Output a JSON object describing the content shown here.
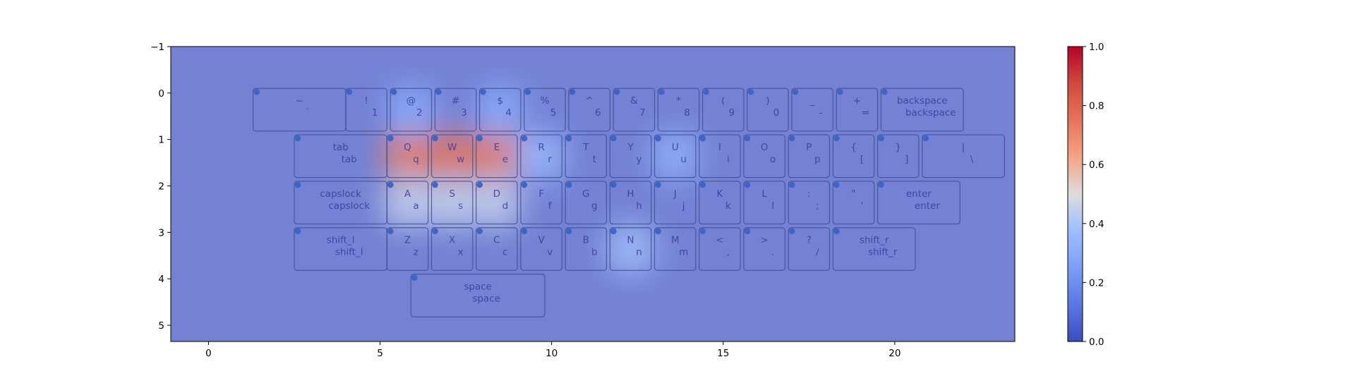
{
  "chart_data": {
    "type": "heatmap",
    "title": "",
    "xlabel": "",
    "ylabel": "",
    "xlim": [
      -1.1,
      23.5
    ],
    "ylim": [
      5.35,
      -1.0
    ],
    "y_inverted": true,
    "grid": false,
    "x_ticks": [
      0,
      5,
      10,
      15,
      20
    ],
    "y_ticks": [
      -1,
      0,
      1,
      2,
      3,
      4,
      5
    ],
    "x_tick_labels": [
      "0",
      "5",
      "10",
      "15",
      "20"
    ],
    "y_tick_labels": [
      "−1",
      "0",
      "1",
      "2",
      "3",
      "4",
      "5"
    ],
    "colormap": "coolwarm",
    "colorbar": {
      "min": 0.0,
      "max": 1.0,
      "ticks": [
        0.0,
        0.2,
        0.4,
        0.6,
        0.8,
        1.0
      ],
      "tick_labels": [
        "0.0",
        "0.2",
        "0.4",
        "0.6",
        "0.8",
        "1.0"
      ]
    },
    "background_value": 0.1,
    "intensity_peaks": [
      {
        "key": "q",
        "value": 0.72
      },
      {
        "key": "w",
        "value": 0.75
      },
      {
        "key": "e",
        "value": 0.72
      },
      {
        "key": "a",
        "value": 0.45
      },
      {
        "key": "s",
        "value": 0.45
      },
      {
        "key": "d",
        "value": 0.45
      },
      {
        "key": "r",
        "value": 0.35
      },
      {
        "key": "u",
        "value": 0.32
      },
      {
        "key": "n",
        "value": 0.38
      },
      {
        "key": "2",
        "value": 0.3
      },
      {
        "key": "4",
        "value": 0.3
      }
    ],
    "keys": [
      {
        "name": "grave",
        "shift": "~",
        "base": "`",
        "x": 1.3,
        "y": -0.1,
        "w": 2.7,
        "h": 0.92
      },
      {
        "name": "1",
        "shift": "!",
        "base": "1",
        "x": 4.0,
        "y": -0.1,
        "w": 1.2,
        "h": 0.92
      },
      {
        "name": "2",
        "shift": "@",
        "base": "2",
        "x": 5.3,
        "y": -0.1,
        "w": 1.2,
        "h": 0.92
      },
      {
        "name": "3",
        "shift": "#",
        "base": "3",
        "x": 6.6,
        "y": -0.1,
        "w": 1.2,
        "h": 0.92
      },
      {
        "name": "4",
        "shift": "$",
        "base": "4",
        "x": 7.9,
        "y": -0.1,
        "w": 1.2,
        "h": 0.92
      },
      {
        "name": "5",
        "shift": "%",
        "base": "5",
        "x": 9.2,
        "y": -0.1,
        "w": 1.2,
        "h": 0.92
      },
      {
        "name": "6",
        "shift": "^",
        "base": "6",
        "x": 10.5,
        "y": -0.1,
        "w": 1.2,
        "h": 0.92
      },
      {
        "name": "7",
        "shift": "&",
        "base": "7",
        "x": 11.8,
        "y": -0.1,
        "w": 1.2,
        "h": 0.92
      },
      {
        "name": "8",
        "shift": "*",
        "base": "8",
        "x": 13.1,
        "y": -0.1,
        "w": 1.2,
        "h": 0.92
      },
      {
        "name": "9",
        "shift": "(",
        "base": "9",
        "x": 14.4,
        "y": -0.1,
        "w": 1.2,
        "h": 0.92
      },
      {
        "name": "0",
        "shift": ")",
        "base": "0",
        "x": 15.7,
        "y": -0.1,
        "w": 1.2,
        "h": 0.92
      },
      {
        "name": "minus",
        "shift": "_",
        "base": "-",
        "x": 17.0,
        "y": -0.1,
        "w": 1.2,
        "h": 0.92
      },
      {
        "name": "equal",
        "shift": "+",
        "base": "=",
        "x": 18.3,
        "y": -0.1,
        "w": 1.2,
        "h": 0.92
      },
      {
        "name": "backspace",
        "shift": "backspace",
        "base": "backspace",
        "x": 19.6,
        "y": -0.1,
        "w": 2.4,
        "h": 0.92
      },
      {
        "name": "tab",
        "shift": "tab",
        "base": "tab",
        "x": 2.5,
        "y": 0.9,
        "w": 2.7,
        "h": 0.92
      },
      {
        "name": "q",
        "shift": "Q",
        "base": "q",
        "x": 5.2,
        "y": 0.9,
        "w": 1.2,
        "h": 0.92
      },
      {
        "name": "w",
        "shift": "W",
        "base": "w",
        "x": 6.5,
        "y": 0.9,
        "w": 1.2,
        "h": 0.92
      },
      {
        "name": "e",
        "shift": "E",
        "base": "e",
        "x": 7.8,
        "y": 0.9,
        "w": 1.2,
        "h": 0.92
      },
      {
        "name": "r",
        "shift": "R",
        "base": "r",
        "x": 9.1,
        "y": 0.9,
        "w": 1.2,
        "h": 0.92
      },
      {
        "name": "t",
        "shift": "T",
        "base": "t",
        "x": 10.4,
        "y": 0.9,
        "w": 1.2,
        "h": 0.92
      },
      {
        "name": "y",
        "shift": "Y",
        "base": "y",
        "x": 11.7,
        "y": 0.9,
        "w": 1.2,
        "h": 0.92
      },
      {
        "name": "u",
        "shift": "U",
        "base": "u",
        "x": 13.0,
        "y": 0.9,
        "w": 1.2,
        "h": 0.92
      },
      {
        "name": "i",
        "shift": "I",
        "base": "i",
        "x": 14.3,
        "y": 0.9,
        "w": 1.2,
        "h": 0.92
      },
      {
        "name": "o",
        "shift": "O",
        "base": "o",
        "x": 15.6,
        "y": 0.9,
        "w": 1.2,
        "h": 0.92
      },
      {
        "name": "p",
        "shift": "P",
        "base": "p",
        "x": 16.9,
        "y": 0.9,
        "w": 1.2,
        "h": 0.92
      },
      {
        "name": "lbracket",
        "shift": "{",
        "base": "[",
        "x": 18.2,
        "y": 0.9,
        "w": 1.2,
        "h": 0.92
      },
      {
        "name": "rbracket",
        "shift": "}",
        "base": "]",
        "x": 19.5,
        "y": 0.9,
        "w": 1.2,
        "h": 0.92
      },
      {
        "name": "backslash",
        "shift": "|",
        "base": "\\",
        "x": 20.8,
        "y": 0.9,
        "w": 2.4,
        "h": 0.92
      },
      {
        "name": "capslock",
        "shift": "capslock",
        "base": "capslock",
        "x": 2.5,
        "y": 1.9,
        "w": 2.7,
        "h": 0.92
      },
      {
        "name": "a",
        "shift": "A",
        "base": "a",
        "x": 5.2,
        "y": 1.9,
        "w": 1.2,
        "h": 0.92
      },
      {
        "name": "s",
        "shift": "S",
        "base": "s",
        "x": 6.5,
        "y": 1.9,
        "w": 1.2,
        "h": 0.92
      },
      {
        "name": "d",
        "shift": "D",
        "base": "d",
        "x": 7.8,
        "y": 1.9,
        "w": 1.2,
        "h": 0.92
      },
      {
        "name": "f",
        "shift": "F",
        "base": "f",
        "x": 9.1,
        "y": 1.9,
        "w": 1.2,
        "h": 0.92
      },
      {
        "name": "g",
        "shift": "G",
        "base": "g",
        "x": 10.4,
        "y": 1.9,
        "w": 1.2,
        "h": 0.92
      },
      {
        "name": "h",
        "shift": "H",
        "base": "h",
        "x": 11.7,
        "y": 1.9,
        "w": 1.2,
        "h": 0.92
      },
      {
        "name": "j",
        "shift": "J",
        "base": "j",
        "x": 13.0,
        "y": 1.9,
        "w": 1.2,
        "h": 0.92
      },
      {
        "name": "k",
        "shift": "K",
        "base": "k",
        "x": 14.3,
        "y": 1.9,
        "w": 1.2,
        "h": 0.92
      },
      {
        "name": "l",
        "shift": "L",
        "base": "l",
        "x": 15.6,
        "y": 1.9,
        "w": 1.2,
        "h": 0.92
      },
      {
        "name": "semicolon",
        "shift": ":",
        "base": ";",
        "x": 16.9,
        "y": 1.9,
        "w": 1.2,
        "h": 0.92
      },
      {
        "name": "quote",
        "shift": "\"",
        "base": "'",
        "x": 18.2,
        "y": 1.9,
        "w": 1.2,
        "h": 0.92
      },
      {
        "name": "enter",
        "shift": "enter",
        "base": "enter",
        "x": 19.5,
        "y": 1.9,
        "w": 2.4,
        "h": 0.92
      },
      {
        "name": "shift_l",
        "shift": "shift_l",
        "base": "shift_l",
        "x": 2.5,
        "y": 2.9,
        "w": 2.7,
        "h": 0.92
      },
      {
        "name": "z",
        "shift": "Z",
        "base": "z",
        "x": 5.2,
        "y": 2.9,
        "w": 1.2,
        "h": 0.92
      },
      {
        "name": "x",
        "shift": "X",
        "base": "x",
        "x": 6.5,
        "y": 2.9,
        "w": 1.2,
        "h": 0.92
      },
      {
        "name": "c",
        "shift": "C",
        "base": "c",
        "x": 7.8,
        "y": 2.9,
        "w": 1.2,
        "h": 0.92
      },
      {
        "name": "v",
        "shift": "V",
        "base": "v",
        "x": 9.1,
        "y": 2.9,
        "w": 1.2,
        "h": 0.92
      },
      {
        "name": "b",
        "shift": "B",
        "base": "b",
        "x": 10.4,
        "y": 2.9,
        "w": 1.2,
        "h": 0.92
      },
      {
        "name": "n",
        "shift": "N",
        "base": "n",
        "x": 11.7,
        "y": 2.9,
        "w": 1.2,
        "h": 0.92
      },
      {
        "name": "m",
        "shift": "M",
        "base": "m",
        "x": 13.0,
        "y": 2.9,
        "w": 1.2,
        "h": 0.92
      },
      {
        "name": "comma",
        "shift": "<",
        "base": ",",
        "x": 14.3,
        "y": 2.9,
        "w": 1.2,
        "h": 0.92
      },
      {
        "name": "period",
        "shift": ">",
        "base": ".",
        "x": 15.6,
        "y": 2.9,
        "w": 1.2,
        "h": 0.92
      },
      {
        "name": "slash",
        "shift": "?",
        "base": "/",
        "x": 16.9,
        "y": 2.9,
        "w": 1.2,
        "h": 0.92
      },
      {
        "name": "shift_r",
        "shift": "shift_r",
        "base": "shift_r",
        "x": 18.2,
        "y": 2.9,
        "w": 2.4,
        "h": 0.92
      },
      {
        "name": "space",
        "shift": "space",
        "base": "space",
        "x": 5.9,
        "y": 3.9,
        "w": 3.9,
        "h": 0.92
      }
    ]
  }
}
